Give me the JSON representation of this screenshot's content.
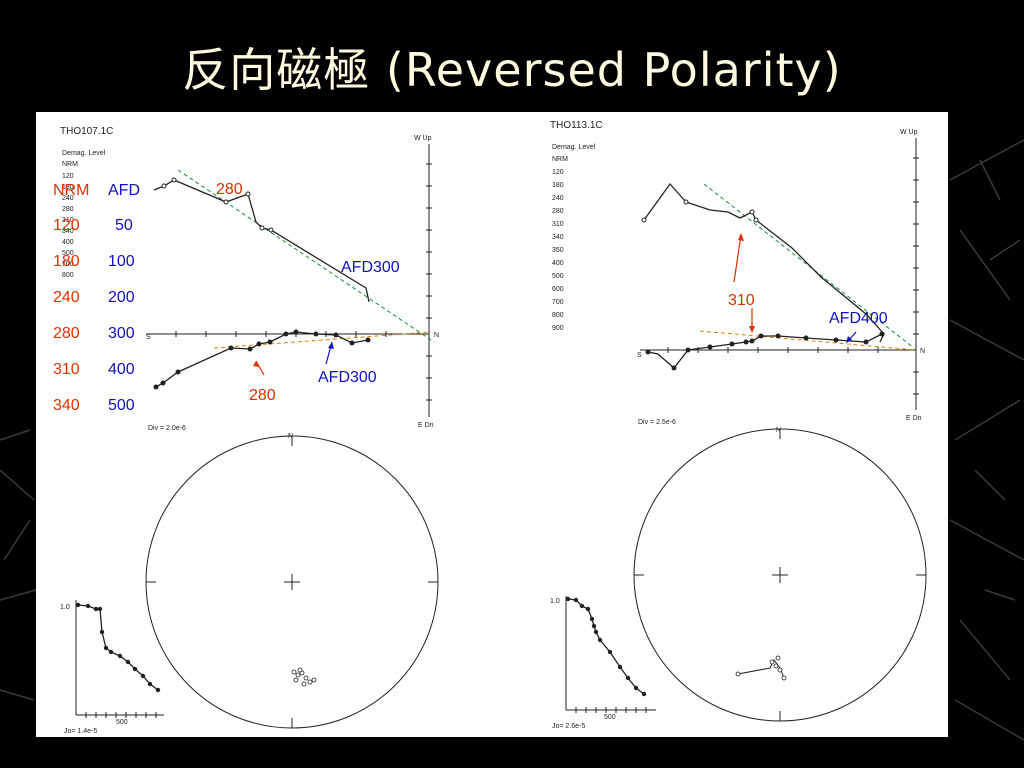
{
  "slide": {
    "title": "反向磁極 (Reversed Polarity)"
  },
  "colors": {
    "background": "#000000",
    "title": "#fffbe0",
    "annotation_red": "#e03000",
    "annotation_blue": "#1010c0",
    "fit_green": "#1a8a3a",
    "fit_orange": "#e08000"
  },
  "left_plot": {
    "sample_id": "THO107.1C",
    "demag_label_1": "Demag. Level",
    "demag_label_2": "NRM",
    "demag_levels": [
      "120",
      "180",
      "240",
      "280",
      "310",
      "340",
      "400",
      "500",
      "700",
      "800"
    ],
    "axis_up": "W Up",
    "axis_dn": "E Dn",
    "axis_n": "N",
    "axis_s": "S",
    "div_label": "Div = 2.0e-6",
    "intensity_label": "Jo= 1.4e-5",
    "intensity_tick": "500",
    "intensity_start": "1.0",
    "stereo_n": "N",
    "annotations": {
      "top_red": "280",
      "top_blue": "AFD300",
      "bottom_red": "280",
      "bottom_blue": "AFD300"
    }
  },
  "right_plot": {
    "sample_id": "THO113.1C",
    "demag_label_1": "Demag. Level",
    "demag_label_2": "NRM",
    "demag_levels": [
      "120",
      "180",
      "240",
      "280",
      "310",
      "340",
      "350",
      "400",
      "500",
      "600",
      "700",
      "800",
      "900"
    ],
    "axis_up": "W Up",
    "axis_dn": "E Dn",
    "axis_n": "N",
    "axis_s": "S",
    "div_label": "Div = 2.5e-6",
    "intensity_label": "Jo= 2.6e-5",
    "intensity_tick": "500",
    "intensity_start": "1.0",
    "stereo_n": "N",
    "annotations": {
      "red": "310",
      "blue": "AFD400"
    }
  },
  "legend_table": {
    "header_nrm": "NRM",
    "header_afd": "AFD",
    "rows": [
      {
        "thermal": "120",
        "afd": "50"
      },
      {
        "thermal": "180",
        "afd": "100"
      },
      {
        "thermal": "240",
        "afd": "200"
      },
      {
        "thermal": "280",
        "afd": "300"
      },
      {
        "thermal": "310",
        "afd": "400"
      },
      {
        "thermal": "340",
        "afd": "500"
      }
    ]
  }
}
